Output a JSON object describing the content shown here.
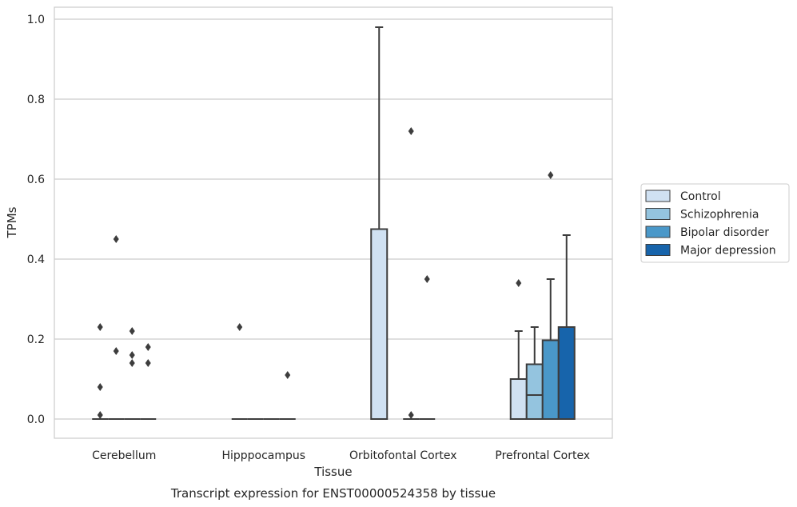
{
  "chart_data": {
    "type": "box",
    "caption": "Transcript expression for ENST00000524358 by tissue",
    "xlabel": "Tissue",
    "ylabel": "TPMs",
    "ylim": [
      -0.045,
      1.03
    ],
    "yticks": [
      "0.0",
      "0.2",
      "0.4",
      "0.6",
      "0.8",
      "1.0"
    ],
    "grid": true,
    "legend_position": "right",
    "categories": [
      "Cerebellum",
      "Hipppocampus",
      "Orbitofontal Cortex",
      "Prefrontal Cortex"
    ],
    "series": [
      {
        "name": "Control",
        "color": "#d0e1f2",
        "boxes": [
          {
            "q1": 0,
            "median": 0,
            "q3": 0,
            "whisker_low": 0,
            "whisker_high": 0,
            "outliers": [
              0.01,
              0.08,
              0.23
            ]
          },
          {
            "q1": 0,
            "median": 0,
            "q3": 0,
            "whisker_low": 0,
            "whisker_high": 0,
            "outliers": [
              0.23
            ]
          },
          {
            "q1": 0,
            "median": 0,
            "q3": 0.475,
            "whisker_low": 0,
            "whisker_high": 0.98,
            "outliers": []
          },
          {
            "q1": 0,
            "median": 0,
            "q3": 0.1,
            "whisker_low": 0,
            "whisker_high": 0.22,
            "outliers": [
              0.34
            ]
          }
        ]
      },
      {
        "name": "Schizophrenia",
        "color": "#94c4df",
        "boxes": [
          {
            "q1": 0,
            "median": 0,
            "q3": 0,
            "whisker_low": 0,
            "whisker_high": 0,
            "outliers": [
              0.17,
              0.45
            ]
          },
          {
            "q1": 0,
            "median": 0,
            "q3": 0,
            "whisker_low": 0,
            "whisker_high": 0,
            "outliers": []
          },
          null,
          {
            "q1": 0,
            "median": 0.06,
            "q3": 0.137,
            "whisker_low": 0,
            "whisker_high": 0.23,
            "outliers": []
          }
        ]
      },
      {
        "name": "Bipolar disorder",
        "color": "#4a98c9",
        "boxes": [
          {
            "q1": 0,
            "median": 0,
            "q3": 0,
            "whisker_low": 0,
            "whisker_high": 0,
            "outliers": [
              0.14,
              0.16,
              0.22
            ]
          },
          {
            "q1": 0,
            "median": 0,
            "q3": 0,
            "whisker_low": 0,
            "whisker_high": 0,
            "outliers": []
          },
          {
            "q1": 0,
            "median": 0,
            "q3": 0,
            "whisker_low": 0,
            "whisker_high": 0,
            "outliers": [
              0.01,
              0.72
            ]
          },
          {
            "q1": 0,
            "median": 0,
            "q3": 0.197,
            "whisker_low": 0,
            "whisker_high": 0.35,
            "outliers": [
              0.61
            ]
          }
        ]
      },
      {
        "name": "Major depression",
        "color": "#1764ab",
        "boxes": [
          {
            "q1": 0,
            "median": 0,
            "q3": 0,
            "whisker_low": 0,
            "whisker_high": 0,
            "outliers": [
              0.14,
              0.18
            ]
          },
          {
            "q1": 0,
            "median": 0,
            "q3": 0,
            "whisker_low": 0,
            "whisker_high": 0,
            "outliers": [
              0.11
            ]
          },
          {
            "q1": 0,
            "median": 0,
            "q3": 0,
            "whisker_low": 0,
            "whisker_high": 0,
            "outliers": [
              0.35
            ]
          },
          {
            "q1": 0,
            "median": 0,
            "q3": 0.23,
            "whisker_low": 0,
            "whisker_high": 0.46,
            "outliers": []
          }
        ]
      }
    ]
  }
}
